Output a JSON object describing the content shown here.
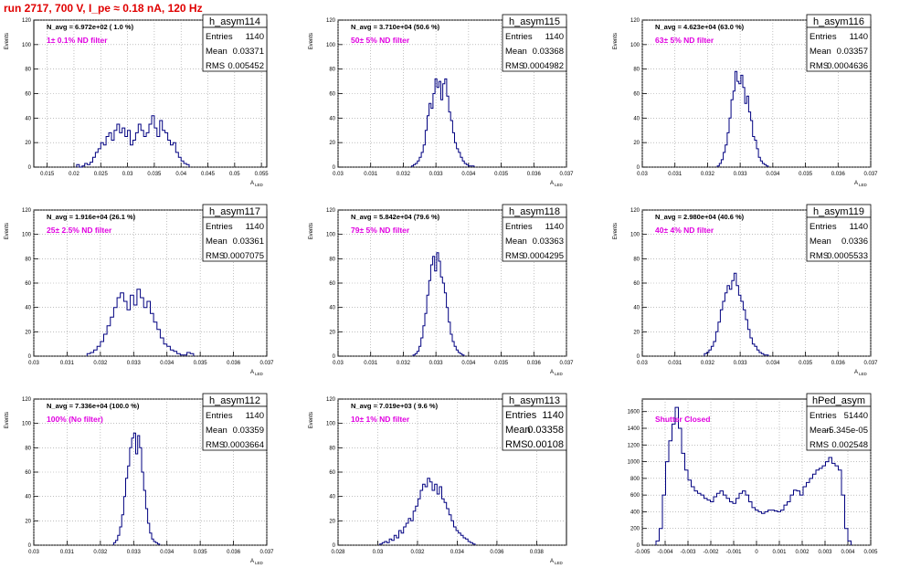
{
  "page_title": "run 2717,   700 V, I_pe ≈ 0.18 nA, 120 Hz",
  "chart_data": [
    {
      "type": "bar",
      "title": "h_asym114",
      "ylabel": "Events",
      "xlabel": "A_LED",
      "xlim": [
        0.0125,
        0.056
      ],
      "ylim": [
        0,
        120
      ],
      "xticks": [
        "0.015",
        "0.02",
        "0.025",
        "0.03",
        "0.035",
        "0.04",
        "0.045",
        "0.05",
        "0.055"
      ],
      "yticks": [
        "0",
        "20",
        "40",
        "60",
        "80",
        "100",
        "120"
      ],
      "grid": true,
      "stats": {
        "Entries": "1140",
        "Mean": "0.03371",
        "RMS": "0.005452"
      },
      "navg": "N_avg = 6.972e+02 ( 1.0 %)",
      "filter": "1± 0.1% ND filter",
      "hist": {
        "start": 0.0205,
        "width": 0.0005,
        "counts": [
          2,
          0,
          1,
          3,
          2,
          4,
          8,
          12,
          15,
          20,
          18,
          25,
          28,
          22,
          30,
          35,
          28,
          32,
          25,
          30,
          18,
          22,
          28,
          35,
          30,
          25,
          28,
          35,
          42,
          32,
          25,
          38,
          30,
          28,
          22,
          18,
          20,
          12,
          8,
          5,
          3,
          2
        ]
      }
    },
    {
      "type": "bar",
      "title": "h_asym115",
      "ylabel": "Events",
      "xlabel": "A_LED",
      "xlim": [
        0.03,
        0.037
      ],
      "ylim": [
        0,
        120
      ],
      "xticks": [
        "0.03",
        "0.031",
        "0.032",
        "0.033",
        "0.034",
        "0.035",
        "0.036",
        "0.037"
      ],
      "yticks": [
        "0",
        "20",
        "40",
        "60",
        "80",
        "100",
        "120"
      ],
      "grid": true,
      "stats": {
        "Entries": "1140",
        "Mean": "0.03368",
        "RMS": "0.0004982"
      },
      "navg": "N_avg = 3.710e+04 (50.6 %)",
      "filter": "50± 5% ND filter",
      "hist": {
        "start": 0.03225,
        "width": 6e-05,
        "counts": [
          1,
          2,
          3,
          5,
          8,
          12,
          18,
          30,
          42,
          52,
          48,
          60,
          72,
          65,
          70,
          55,
          68,
          72,
          58,
          45,
          38,
          28,
          20,
          15,
          12,
          8,
          5,
          3,
          2,
          1,
          1,
          1
        ]
      }
    },
    {
      "type": "bar",
      "title": "h_asym116",
      "ylabel": "Events",
      "xlabel": "A_LED",
      "xlim": [
        0.03,
        0.037
      ],
      "ylim": [
        0,
        120
      ],
      "xticks": [
        "0.03",
        "0.031",
        "0.032",
        "0.033",
        "0.034",
        "0.035",
        "0.036",
        "0.037"
      ],
      "yticks": [
        "0",
        "20",
        "40",
        "60",
        "80",
        "100",
        "120"
      ],
      "grid": true,
      "stats": {
        "Entries": "1140",
        "Mean": "0.03357",
        "RMS": "0.0004636"
      },
      "navg": "N_avg = 4.623e+04 (63.0 %)",
      "filter": "63± 5% ND filter",
      "hist": {
        "start": 0.0323,
        "width": 6e-05,
        "counts": [
          1,
          3,
          6,
          12,
          18,
          28,
          40,
          55,
          62,
          78,
          70,
          68,
          75,
          65,
          52,
          58,
          45,
          38,
          25,
          22,
          15,
          8,
          5,
          3,
          2,
          1
        ]
      }
    },
    {
      "type": "bar",
      "title": "h_asym117",
      "ylabel": "Events",
      "xlabel": "A_LED",
      "xlim": [
        0.03,
        0.037
      ],
      "ylim": [
        0,
        120
      ],
      "xticks": [
        "0.03",
        "0.031",
        "0.032",
        "0.033",
        "0.034",
        "0.035",
        "0.036",
        "0.037"
      ],
      "yticks": [
        "0",
        "20",
        "40",
        "60",
        "80",
        "100",
        "120"
      ],
      "grid": true,
      "stats": {
        "Entries": "1140",
        "Mean": "0.03361",
        "RMS": "0.0007075"
      },
      "navg": "N_avg = 1.916e+04 (26.1 %)",
      "filter": "25± 2.5% ND filter",
      "hist": {
        "start": 0.0316,
        "width": 0.0001,
        "counts": [
          2,
          3,
          5,
          8,
          12,
          18,
          25,
          32,
          40,
          48,
          52,
          45,
          38,
          50,
          42,
          55,
          48,
          40,
          45,
          35,
          28,
          22,
          15,
          10,
          8,
          5,
          4,
          2,
          1,
          1,
          3,
          2
        ]
      }
    },
    {
      "type": "bar",
      "title": "h_asym118",
      "ylabel": "Events",
      "xlabel": "A_LED",
      "xlim": [
        0.03,
        0.037
      ],
      "ylim": [
        0,
        120
      ],
      "xticks": [
        "0.03",
        "0.031",
        "0.032",
        "0.033",
        "0.034",
        "0.035",
        "0.036",
        "0.037"
      ],
      "yticks": [
        "0",
        "20",
        "40",
        "60",
        "80",
        "100",
        "120"
      ],
      "grid": true,
      "stats": {
        "Entries": "1140",
        "Mean": "0.03363",
        "RMS": "0.0004295"
      },
      "navg": "N_avg = 5.842e+04 (79.6 %)",
      "filter": "79± 5% ND filter",
      "hist": {
        "start": 0.0323,
        "width": 6e-05,
        "counts": [
          1,
          2,
          4,
          8,
          15,
          25,
          35,
          50,
          62,
          75,
          82,
          70,
          85,
          78,
          65,
          60,
          52,
          40,
          28,
          18,
          12,
          8,
          5,
          3,
          2,
          1
        ]
      }
    },
    {
      "type": "bar",
      "title": "h_asym119",
      "ylabel": "Events",
      "xlabel": "A_LED",
      "xlim": [
        0.03,
        0.037
      ],
      "ylim": [
        0,
        120
      ],
      "xticks": [
        "0.03",
        "0.031",
        "0.032",
        "0.033",
        "0.034",
        "0.035",
        "0.036",
        "0.037"
      ],
      "yticks": [
        "0",
        "20",
        "40",
        "60",
        "80",
        "100",
        "120"
      ],
      "grid": true,
      "stats": {
        "Entries": "1140",
        "Mean": "0.0336",
        "RMS": "0.0005533"
      },
      "navg": "N_avg = 2.980e+04 (40.6 %)",
      "filter": "40± 4% ND filter",
      "hist": {
        "start": 0.0319,
        "width": 7e-05,
        "counts": [
          2,
          3,
          5,
          8,
          12,
          20,
          28,
          38,
          45,
          52,
          58,
          55,
          62,
          68,
          58,
          50,
          45,
          38,
          30,
          22,
          15,
          10,
          8,
          5,
          3,
          2,
          1,
          1
        ]
      }
    },
    {
      "type": "bar",
      "title": "h_asym112",
      "ylabel": "Events",
      "xlabel": "A_LED",
      "xlim": [
        0.03,
        0.037
      ],
      "ylim": [
        0,
        120
      ],
      "xticks": [
        "0.03",
        "0.031",
        "0.032",
        "0.033",
        "0.034",
        "0.035",
        "0.036",
        "0.037"
      ],
      "yticks": [
        "0",
        "20",
        "40",
        "60",
        "80",
        "100",
        "120"
      ],
      "grid": true,
      "stats": {
        "Entries": "1140",
        "Mean": "0.03359",
        "RMS": "0.0003664"
      },
      "navg": "N_avg = 7.336e+04 (100.0 %)",
      "filter": "100% (No filter)",
      "hist": {
        "start": 0.0324,
        "width": 6e-05,
        "counts": [
          2,
          4,
          8,
          15,
          25,
          40,
          55,
          65,
          80,
          88,
          92,
          75,
          90,
          80,
          60,
          45,
          30,
          18,
          10,
          5,
          3,
          2,
          1
        ]
      }
    },
    {
      "type": "bar",
      "title": "h_asym113",
      "ylabel": "Events",
      "xlabel": "A_LED",
      "xlim": [
        0.028,
        0.0395
      ],
      "ylim": [
        0,
        120
      ],
      "xticks": [
        "0.028",
        "0.03",
        "0.032",
        "0.034",
        "0.036",
        "0.038"
      ],
      "yticks": [
        "0",
        "20",
        "40",
        "60",
        "80",
        "100",
        "120"
      ],
      "grid": true,
      "stats": {
        "Entries": "1140",
        "Mean": "0.03358",
        "RMS": "0.00108"
      },
      "navg": "N_avg = 7.019e+03 ( 9.6 %)",
      "filter": "10± 1% ND filter",
      "hist": {
        "start": 0.0301,
        "width": 0.00012,
        "counts": [
          1,
          2,
          3,
          2,
          5,
          4,
          8,
          6,
          12,
          10,
          15,
          18,
          22,
          20,
          28,
          32,
          38,
          45,
          50,
          48,
          55,
          52,
          45,
          50,
          42,
          48,
          38,
          35,
          30,
          25,
          20,
          15,
          12,
          10,
          8,
          6,
          5,
          3,
          2,
          1
        ]
      }
    },
    {
      "type": "bar",
      "title": "hPed_asym",
      "ylabel": "",
      "xlabel": "",
      "xlim": [
        -0.005,
        0.005
      ],
      "ylim": [
        0,
        1750
      ],
      "xticks": [
        "-0.005",
        "-0.004",
        "-0.003",
        "-0.002",
        "-0.001",
        "0",
        "0.001",
        "0.002",
        "0.003",
        "0.004",
        "0.005"
      ],
      "yticks": [
        "0",
        "200",
        "400",
        "600",
        "800",
        "1000",
        "1200",
        "1400",
        "1600"
      ],
      "grid": true,
      "stats": {
        "Entries": "51440",
        "Mean": "-5.345e-05",
        "RMS": "0.002548"
      },
      "navg": "",
      "filter": "Shutter Closed",
      "hist": {
        "start": -0.0044,
        "width": 0.00014,
        "counts": [
          50,
          200,
          600,
          1000,
          1250,
          1450,
          1650,
          1400,
          1100,
          900,
          780,
          700,
          650,
          620,
          600,
          560,
          540,
          520,
          580,
          620,
          650,
          600,
          560,
          520,
          500,
          560,
          620,
          650,
          600,
          520,
          450,
          420,
          400,
          380,
          400,
          420,
          420,
          410,
          400,
          420,
          480,
          520,
          600,
          660,
          650,
          600,
          700,
          750,
          800,
          850,
          900,
          920,
          950,
          1000,
          1050,
          980,
          950,
          900,
          600,
          200,
          50
        ]
      }
    }
  ]
}
